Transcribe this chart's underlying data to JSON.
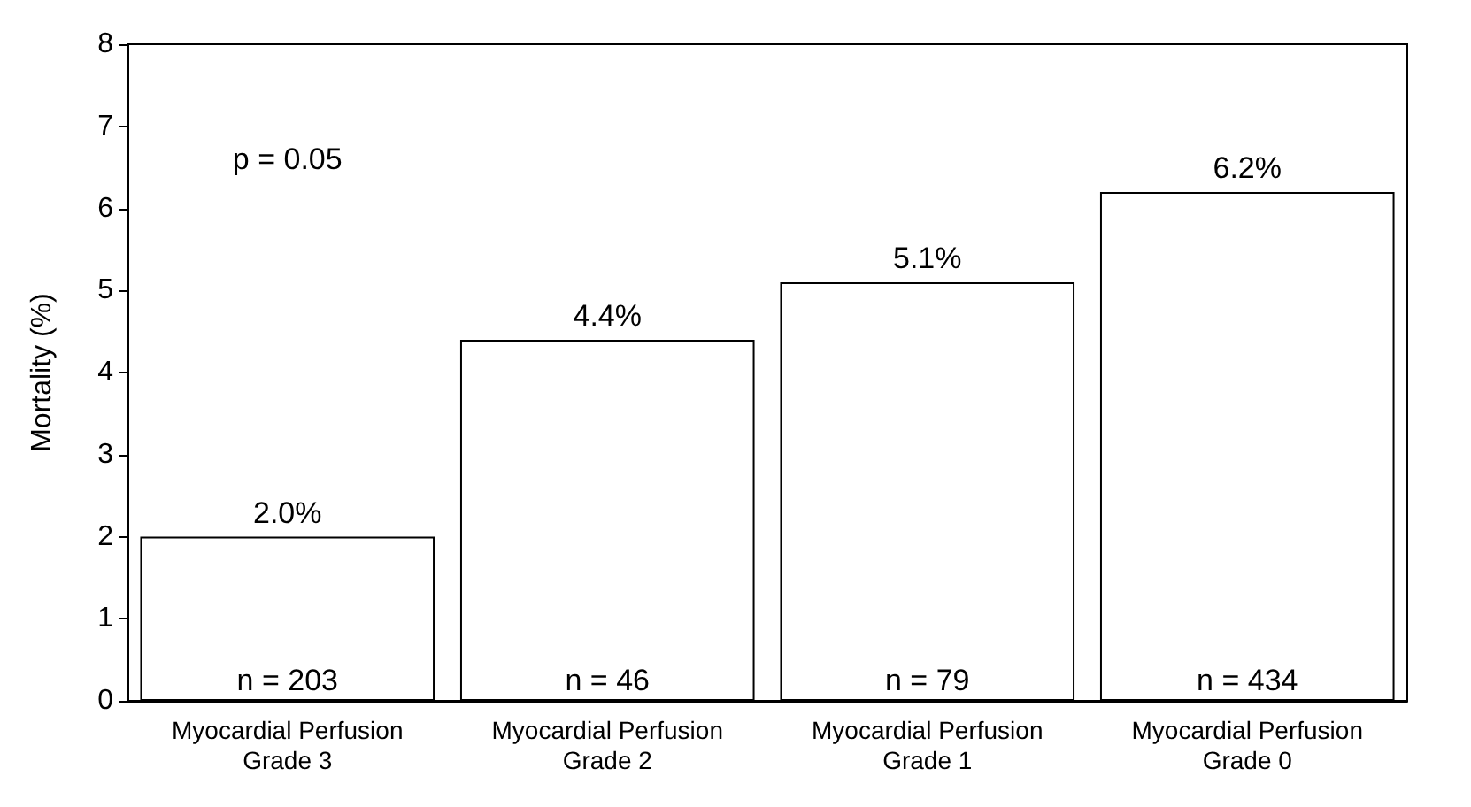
{
  "chart_data": {
    "type": "bar",
    "ylabel": "Mortality (%)",
    "categories": [
      "Myocardial Perfusion\nGrade 3",
      "Myocardial Perfusion\nGrade 2",
      "Myocardial Perfusion\nGrade 1",
      "Myocardial Perfusion\nGrade 0"
    ],
    "values": [
      2.0,
      4.4,
      5.1,
      6.2
    ],
    "value_labels": [
      "2.0%",
      "4.4%",
      "5.1%",
      "6.2%"
    ],
    "color": "#ffffff",
    "ylim": [
      0,
      8
    ],
    "yticks": [
      0,
      1,
      2,
      3,
      4,
      5,
      6,
      7,
      8
    ],
    "grid": false,
    "annotations": [
      "p = 0.05",
      {
        "text": "n = 203",
        "x": "Myocardial Perfusion\nGrade 3",
        "y": 0
      },
      {
        "text": "n = 46",
        "x": "Myocardial Perfusion\nGrade 2",
        "y": 0
      },
      {
        "text": "n = 79",
        "x": "Myocardial Perfusion\nGrade 1",
        "y": 0
      },
      {
        "text": "n = 434",
        "x": "Myocardial Perfusion\nGrade 0",
        "y": 0
      }
    ]
  }
}
